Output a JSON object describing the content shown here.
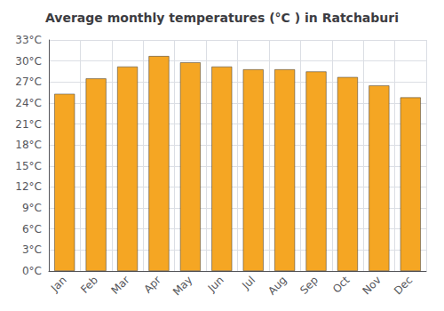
{
  "chart_data": {
    "type": "bar",
    "title": "Average monthly temperatures (°C ) in Ratchaburi",
    "categories": [
      "Jan",
      "Feb",
      "Mar",
      "Apr",
      "May",
      "Jun",
      "Jul",
      "Aug",
      "Sep",
      "Oct",
      "Nov",
      "Dec"
    ],
    "values": [
      25.3,
      27.5,
      29.2,
      30.7,
      29.8,
      29.2,
      28.8,
      28.8,
      28.5,
      27.7,
      26.5,
      24.8
    ],
    "color": "#F5A623",
    "ylim": [
      0,
      33
    ],
    "yticks": [
      {
        "value": 0,
        "label": "0°C"
      },
      {
        "value": 3,
        "label": "3°C"
      },
      {
        "value": 6,
        "label": "6°C"
      },
      {
        "value": 9,
        "label": "9°C"
      },
      {
        "value": 12,
        "label": "12°C"
      },
      {
        "value": 15,
        "label": "15°C"
      },
      {
        "value": 18,
        "label": "18°C"
      },
      {
        "value": 21,
        "label": "21°C"
      },
      {
        "value": 24,
        "label": "24°C"
      },
      {
        "value": 27,
        "label": "27°C"
      },
      {
        "value": 30,
        "label": "30°C"
      },
      {
        "value": 33,
        "label": "33°C"
      }
    ],
    "grid": true
  }
}
